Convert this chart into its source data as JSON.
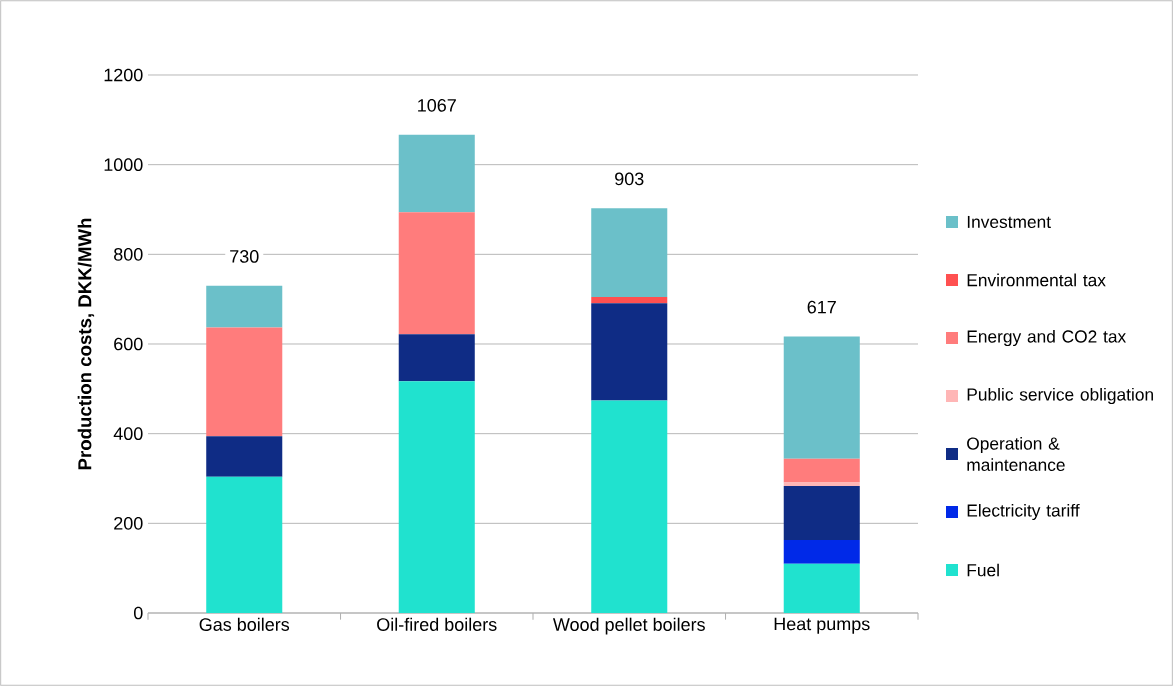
{
  "chart_data": {
    "type": "bar",
    "stacked": true,
    "ylabel": "Production costs, DKK/MWh",
    "categories": [
      "Gas boilers",
      "Oil-fired boilers",
      "Wood pellet boilers",
      "Heat pumps"
    ],
    "series": [
      {
        "name": "Fuel",
        "color": "#20e2cf",
        "values": [
          304,
          517,
          474,
          110
        ]
      },
      {
        "name": "Electricity tariff",
        "color": "#0029e8",
        "values": [
          0,
          0,
          0,
          53
        ]
      },
      {
        "name": "Operation & maintenance",
        "color": "#0f2c85",
        "values": [
          90,
          105,
          217,
          120
        ]
      },
      {
        "name": "Public service obligation",
        "color": "#ffb6b6",
        "values": [
          0,
          0,
          0,
          8
        ]
      },
      {
        "name": "Energy and CO2 tax",
        "color": "#ff7c7c",
        "values": [
          243,
          272,
          0,
          53
        ]
      },
      {
        "name": "Environmental tax",
        "color": "#ff5050",
        "values": [
          0,
          0,
          14,
          0
        ]
      },
      {
        "name": "Investment",
        "color": "#6bc0c9",
        "values": [
          93,
          173,
          198,
          273
        ]
      }
    ],
    "totals": [
      "730",
      "1067",
      "903",
      "617"
    ],
    "ylim": [
      0,
      1200
    ],
    "yticks": [
      0,
      200,
      400,
      600,
      800,
      1000,
      1200
    ],
    "grid": "y",
    "legend": "right"
  }
}
